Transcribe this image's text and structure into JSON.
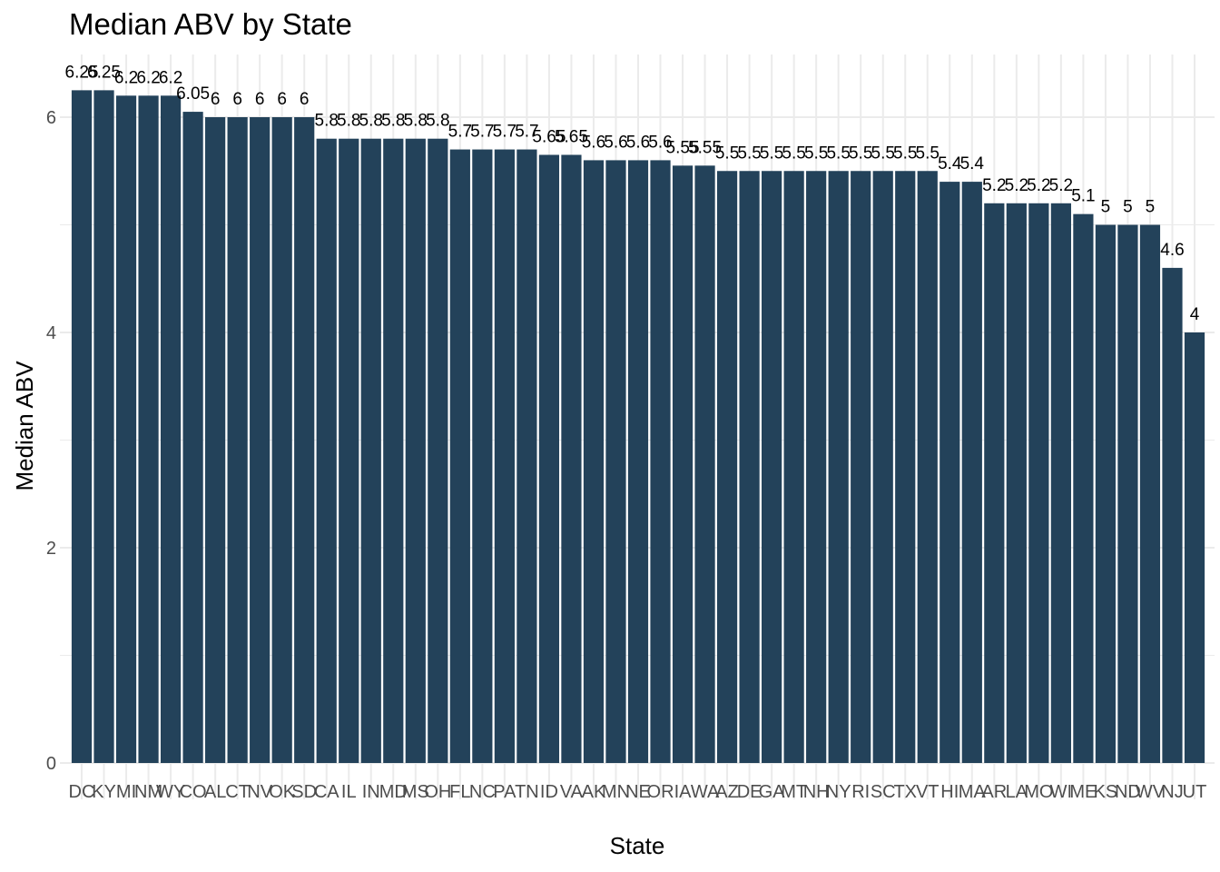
{
  "chart_data": {
    "type": "bar",
    "title": "Median ABV by State",
    "xlabel": "State",
    "ylabel": "Median ABV",
    "ylim": [
      -0.5,
      6.45
    ],
    "yticks": [
      0,
      2,
      4,
      6
    ],
    "grid": true,
    "categories": [
      "DC",
      "KY",
      "MI",
      "NM",
      "WY",
      "CO",
      "AL",
      "CT",
      "NV",
      "OK",
      "SD",
      "CA",
      "IL",
      "IN",
      "MD",
      "MS",
      "OH",
      "FL",
      "NC",
      "PA",
      "TN",
      "ID",
      "VA",
      "AK",
      "MN",
      "NE",
      "OR",
      "IA",
      "WA",
      "AZ",
      "DE",
      "GA",
      "MT",
      "NH",
      "NY",
      "RI",
      "SC",
      "TX",
      "VT",
      "HI",
      "MA",
      "AR",
      "LA",
      "MO",
      "WI",
      "ME",
      "KS",
      "ND",
      "WV",
      "NJ",
      "UT"
    ],
    "values": [
      6.25,
      6.25,
      6.2,
      6.2,
      6.2,
      6.05,
      6,
      6,
      6,
      6,
      6,
      5.8,
      5.8,
      5.8,
      5.8,
      5.8,
      5.8,
      5.7,
      5.7,
      5.7,
      5.7,
      5.65,
      5.65,
      5.6,
      5.6,
      5.6,
      5.6,
      5.55,
      5.55,
      5.5,
      5.5,
      5.5,
      5.5,
      5.5,
      5.5,
      5.5,
      5.5,
      5.5,
      5.5,
      5.4,
      5.4,
      5.2,
      5.2,
      5.2,
      5.2,
      5.1,
      5,
      5,
      5,
      4.6,
      4
    ],
    "labels": [
      "6.25",
      "6.25",
      "6.2",
      "6.2",
      "6.2",
      "6.05",
      "6",
      "6",
      "6",
      "6",
      "6",
      "5.8",
      "5.8",
      "5.8",
      "5.8",
      "5.8",
      "5.8",
      "5.7",
      "5.7",
      "5.7",
      "5.7",
      "5.65",
      "5.65",
      "5.6",
      "5.6",
      "5.6",
      "5.6",
      "5.55",
      "5.55",
      "5.5",
      "5.5",
      "5.5",
      "5.5",
      "5.5",
      "5.5",
      "5.5",
      "5.5",
      "5.5",
      "5.5",
      "5.4",
      "5.4",
      "5.2",
      "5.2",
      "5.2",
      "5.2",
      "5.1",
      "5",
      "5",
      "5",
      "4.6",
      "4"
    ],
    "bar_color": "#23425a",
    "grid_color": "#ebebeb"
  }
}
